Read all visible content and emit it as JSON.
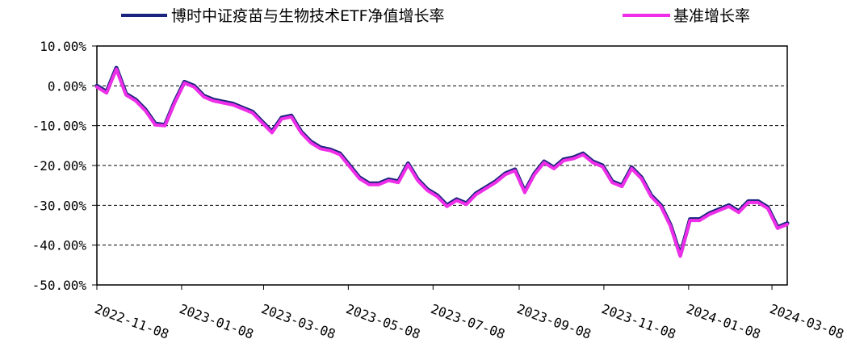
{
  "chart_data": {
    "type": "line",
    "title": "",
    "xlabel": "",
    "ylabel": "",
    "ylim": [
      -50,
      10
    ],
    "y_ticks": [
      10,
      0,
      -10,
      -20,
      -30,
      -40,
      -50
    ],
    "y_tick_labels": [
      "10.00%",
      "0.00%",
      "-10.00%",
      "-20.00%",
      "-30.00%",
      "-40.00%",
      "-50.00%"
    ],
    "x_tick_labels": [
      "2022-11-08",
      "2023-01-08",
      "2023-03-08",
      "2023-05-08",
      "2023-07-08",
      "2023-09-08",
      "2023-11-08",
      "2024-01-08",
      "2024-03-08"
    ],
    "grid": "horizontal-dashed",
    "legend": "top",
    "series": [
      {
        "name": "博时中证疫苗与生物技术ETF净值增长率",
        "color": "#1a237e",
        "x": [
          "2022-11-08",
          "2022-11-15",
          "2022-11-22",
          "2022-11-29",
          "2022-12-06",
          "2022-12-13",
          "2022-12-20",
          "2022-12-27",
          "2023-01-03",
          "2023-01-10",
          "2023-01-17",
          "2023-01-24",
          "2023-01-31",
          "2023-02-07",
          "2023-02-14",
          "2023-02-21",
          "2023-02-28",
          "2023-03-07",
          "2023-03-14",
          "2023-03-21",
          "2023-03-28",
          "2023-04-04",
          "2023-04-11",
          "2023-04-18",
          "2023-04-25",
          "2023-05-02",
          "2023-05-09",
          "2023-05-16",
          "2023-05-23",
          "2023-05-30",
          "2023-06-06",
          "2023-06-13",
          "2023-06-20",
          "2023-06-27",
          "2023-07-04",
          "2023-07-11",
          "2023-07-18",
          "2023-07-25",
          "2023-08-01",
          "2023-08-08",
          "2023-08-15",
          "2023-08-22",
          "2023-08-29",
          "2023-09-05",
          "2023-09-12",
          "2023-09-19",
          "2023-09-26",
          "2023-10-03",
          "2023-10-10",
          "2023-10-17",
          "2023-10-24",
          "2023-10-31",
          "2023-11-07",
          "2023-11-14",
          "2023-11-21",
          "2023-11-28",
          "2023-12-05",
          "2023-12-12",
          "2023-12-19",
          "2023-12-26",
          "2024-01-02",
          "2024-01-09",
          "2024-01-16",
          "2024-01-23",
          "2024-01-30",
          "2024-02-06",
          "2024-02-13",
          "2024-02-20",
          "2024-02-27",
          "2024-03-05",
          "2024-03-12",
          "2024-03-19"
        ],
        "values": [
          0.0,
          -1.5,
          4.5,
          -2.0,
          -3.5,
          -6.0,
          -9.5,
          -9.8,
          -4.0,
          1.0,
          0.0,
          -2.5,
          -3.5,
          -4.0,
          -4.5,
          -5.5,
          -6.5,
          -9.0,
          -11.5,
          -8.0,
          -7.5,
          -11.5,
          -14.0,
          -15.5,
          -16.0,
          -17.0,
          -20.0,
          -23.0,
          -24.5,
          -24.5,
          -23.5,
          -24.0,
          -19.5,
          -23.5,
          -26.0,
          -27.5,
          -30.0,
          -28.5,
          -29.5,
          -27.0,
          -25.5,
          -24.0,
          -22.0,
          -21.0,
          -26.5,
          -22.0,
          -19.0,
          -20.5,
          -18.5,
          -18.0,
          -17.0,
          -19.0,
          -20.0,
          -24.0,
          -25.0,
          -20.5,
          -23.0,
          -27.5,
          -30.0,
          -35.0,
          -42.5,
          -33.5,
          -33.5,
          -32.0,
          -31.0,
          -30.0,
          -31.5,
          -29.0,
          -29.0,
          -30.5,
          -35.5,
          -34.5
        ]
      },
      {
        "name": "基准增长率",
        "color": "#ee2ee8",
        "x": [
          "2022-11-08",
          "2022-11-15",
          "2022-11-22",
          "2022-11-29",
          "2022-12-06",
          "2022-12-13",
          "2022-12-20",
          "2022-12-27",
          "2023-01-03",
          "2023-01-10",
          "2023-01-17",
          "2023-01-24",
          "2023-01-31",
          "2023-02-07",
          "2023-02-14",
          "2023-02-21",
          "2023-02-28",
          "2023-03-07",
          "2023-03-14",
          "2023-03-21",
          "2023-03-28",
          "2023-04-04",
          "2023-04-11",
          "2023-04-18",
          "2023-04-25",
          "2023-05-02",
          "2023-05-09",
          "2023-05-16",
          "2023-05-23",
          "2023-05-30",
          "2023-06-06",
          "2023-06-13",
          "2023-06-20",
          "2023-06-27",
          "2023-07-04",
          "2023-07-11",
          "2023-07-18",
          "2023-07-25",
          "2023-08-01",
          "2023-08-08",
          "2023-08-15",
          "2023-08-22",
          "2023-08-29",
          "2023-09-05",
          "2023-09-12",
          "2023-09-19",
          "2023-09-26",
          "2023-10-03",
          "2023-10-10",
          "2023-10-17",
          "2023-10-24",
          "2023-10-31",
          "2023-11-07",
          "2023-11-14",
          "2023-11-21",
          "2023-11-28",
          "2023-12-05",
          "2023-12-12",
          "2023-12-19",
          "2023-12-26",
          "2024-01-02",
          "2024-01-09",
          "2024-01-16",
          "2024-01-23",
          "2024-01-30",
          "2024-02-06",
          "2024-02-13",
          "2024-02-20",
          "2024-02-27",
          "2024-03-05",
          "2024-03-12",
          "2024-03-19"
        ],
        "values": [
          -0.3,
          -1.8,
          4.2,
          -2.3,
          -3.8,
          -6.3,
          -9.8,
          -10.0,
          -4.3,
          0.7,
          -0.3,
          -2.8,
          -3.8,
          -4.3,
          -4.8,
          -5.8,
          -6.8,
          -9.3,
          -11.8,
          -8.3,
          -7.8,
          -11.8,
          -14.3,
          -15.8,
          -16.3,
          -17.3,
          -20.3,
          -23.3,
          -24.8,
          -24.8,
          -23.8,
          -24.3,
          -19.8,
          -23.8,
          -26.3,
          -27.8,
          -30.3,
          -28.8,
          -29.8,
          -27.3,
          -25.8,
          -24.3,
          -22.3,
          -21.3,
          -26.8,
          -22.3,
          -19.3,
          -20.8,
          -18.8,
          -18.3,
          -17.3,
          -19.3,
          -20.3,
          -24.3,
          -25.3,
          -20.8,
          -23.3,
          -27.8,
          -30.3,
          -35.3,
          -42.8,
          -33.8,
          -33.8,
          -32.3,
          -31.3,
          -30.3,
          -31.8,
          -29.3,
          -29.3,
          -30.8,
          -35.8,
          -34.8
        ]
      }
    ]
  }
}
